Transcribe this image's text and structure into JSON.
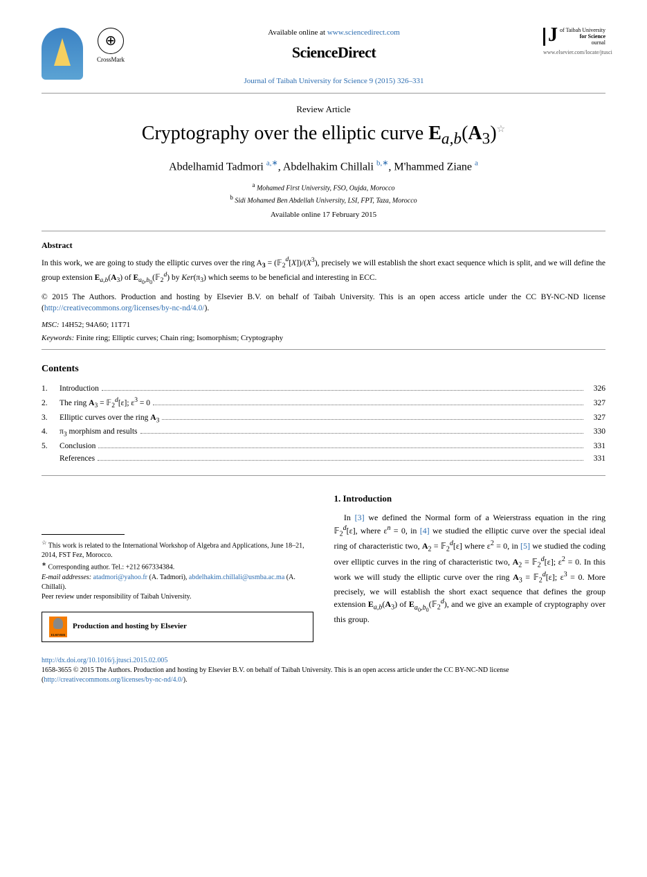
{
  "colors": {
    "link": "#2b6cb0",
    "orange": "#f57c00",
    "univ_blue": "#3b82c4",
    "univ_gold": "#f5d060"
  },
  "header": {
    "crossmark_label": "CrossMark",
    "available_online_prefix": "Available online at ",
    "available_online_url": "www.sciencedirect.com",
    "sciencedirect": "ScienceDirect",
    "journal_citation": "Journal of Taibah University for Science 9 (2015) 326–331",
    "right_logo_lines": [
      "of Taibah University",
      "for Science",
      "ournal"
    ],
    "elsevier_locate": "www.elsevier.com/locate/jtusci"
  },
  "article": {
    "type": "Review Article",
    "title_html": "Cryptography over the elliptic curve <b>E</b><sub><i>a,b</i></sub>(<b>A</b><sub>3</sub>)<sup class=\"star\">☆</sup>",
    "authors_html": "Abdelhamid Tadmori <a href=\"#\"><sup>a,</sup></a><a href=\"#\"><sup>∗</sup></a>, Abdelhakim Chillali <a href=\"#\"><sup>b,</sup></a><a href=\"#\"><sup>∗</sup></a>, M'hammed Ziane <a href=\"#\"><sup>a</sup></a>",
    "affiliations": [
      {
        "sup": "a",
        "text": "Mohamed First University, FSO, Oujda, Morocco"
      },
      {
        "sup": "b",
        "text": "Sidi Mohamed Ben Abdellah University, LSI, FPT, Taza, Morocco"
      }
    ],
    "available_date": "Available online 17 February 2015"
  },
  "abstract": {
    "heading": "Abstract",
    "body_html": "In this work, we are going to study the elliptic curves over the ring A<sub><b>3</b></sub> = (𝔽<sub>2</sub><i><sup>d</sup></i>[<i>X</i>])/(<i>X</i><sup>3</sup>), precisely we will establish the short exact sequence which is split, and we will define the group extension <b>E</b><sub><i>a,b</i></sub>(<b>A</b><sub>3</sub>) of <b>E</b><sub><i>a</i><sub>0</sub>,<i>b</i><sub>0</sub></sub>(𝔽<sub>2</sub><i><sup>d</sup></i>) by <i>Ker</i>(π<sub>3</sub>) which seems to be beneficial and interesting in ECC.",
    "copyright_html": "© 2015 The Authors. Production and hosting by Elsevier B.V. on behalf of Taibah University. This is an open access article under the CC BY-NC-ND license (<a href=\"#\">http://creativecommons.org/licenses/by-nc-nd/4.0/</a>).",
    "msc_label": "MSC:",
    "msc_value": "14H52; 94A60; 11T71",
    "keywords_label": "Keywords:",
    "keywords_value": "Finite ring; Elliptic curves; Chain ring; Isomorphism; Cryptography"
  },
  "contents": {
    "heading": "Contents",
    "items": [
      {
        "num": "1.",
        "label": "Introduction",
        "page": "326"
      },
      {
        "num": "2.",
        "label_html": "The ring <b>A</b><sub>3</sub> = 𝔽<sub>2</sub><i><sup>d</sup></i>[ε]; ε<sup>3</sup> = 0",
        "page": "327"
      },
      {
        "num": "3.",
        "label_html": "Elliptic curves over the ring <b>A</b><sub>3</sub>",
        "page": "327"
      },
      {
        "num": "4.",
        "label_html": "π<sub>3</sub> morphism and results",
        "page": "330"
      },
      {
        "num": "5.",
        "label": "Conclusion",
        "page": "331"
      },
      {
        "num": "",
        "label": "References",
        "page": "331"
      }
    ]
  },
  "intro": {
    "heading": "1. Introduction",
    "body_html": "In <a href=\"#\">[3]</a> we defined the Normal form of a Weierstrass equation in the ring 𝔽<sub>2</sub><i><sup>d</sup></i>[ε], where ε<sup><i>n</i></sup> = 0, in <a href=\"#\">[4]</a> we studied the elliptic curve over the special ideal ring of characteristic two, <b>A</b><sub>2</sub> = 𝔽<sub>2</sub><i><sup>d</sup></i>[ε] where ε<sup>2</sup> = 0, in <a href=\"#\">[5]</a> we studied the coding over elliptic curves in the ring of characteristic two, <b>A</b><sub>2</sub> = 𝔽<sub>2</sub><i><sup>d</sup></i>[ε]; ε<sup>2</sup> = 0. In this work we will study the elliptic curve over the ring <b>A</b><sub>3</sub> = 𝔽<sub>2</sub><i><sup>d</sup></i>[ε]; ε<sup>3</sup> = 0. More precisely, we will establish the short exact sequence that defines the group extension <b>E</b><sub><i>a,b</i></sub>(<b>A</b><sub>3</sub>) of <b>E</b><sub><i>a</i><sub>0</sub>,<i>b</i><sub>0</sub></sub>(𝔽<sub>2</sub><i><sup>d</sup></i>), and we give an example of cryptography over this group."
  },
  "footnotes": {
    "star": "This work is related to the International Workshop of Algebra and Applications, June 18–21, 2014, FST Fez, Morocco.",
    "corresponding": "Corresponding author. Tel.: +212 667334384.",
    "email_label": "E-mail addresses:",
    "emails_html": "<a href=\"#\">atadmori@yahoo.fr</a> (A. Tadmori), <a href=\"#\">abdelhakim.chillali@usmba.ac.ma</a> (A. Chillali).",
    "peer_review": "Peer review under responsibility of Taibah University.",
    "hosting": "Production and hosting by Elsevier",
    "elsevier_small": "ELSEVIER"
  },
  "footer": {
    "doi": "http://dx.doi.org/10.1016/j.jtusci.2015.02.005",
    "issn_line_html": "1658-3655 © 2015 The Authors. Production and hosting by Elsevier B.V. on behalf of Taibah University. This is an open access article under the CC BY-NC-ND license (<a href=\"#\">http://creativecommons.org/licenses/by-nc-nd/4.0/</a>)."
  }
}
